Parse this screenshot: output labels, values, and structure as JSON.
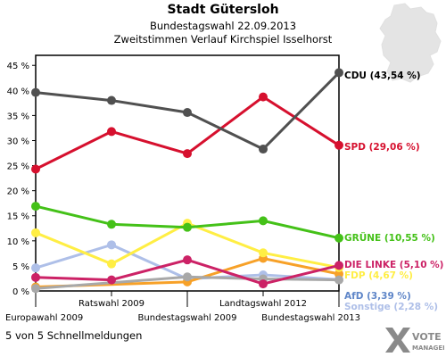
{
  "header": {
    "title": "Stadt Gütersloh",
    "subtitle": "Bundestagswahl 22.09.2013",
    "subtitle2": "Zweitstimmen Verlauf Kirchspiel Isselhorst"
  },
  "footer": {
    "text": "5 von 5 Schnellmeldungen"
  },
  "logo": {
    "line1": "VOTE",
    "line2": "MANAGER"
  },
  "chart_data": {
    "type": "line",
    "title": "Stadt Gütersloh",
    "subtitle": "Bundestagswahl 22.09.2013",
    "x": [
      "Europawahl 2009",
      "Ratswahl 2009",
      "Bundestagswahl 2009",
      "Landtagswahl 2012",
      "Bundestagswahl 2013"
    ],
    "ylim": [
      0,
      47
    ],
    "yticks": [
      "0 %",
      "5 %",
      "10 %",
      "15 %",
      "20 %",
      "25 %",
      "30 %",
      "35 %",
      "40 %",
      "45 %"
    ],
    "ytick_values": [
      0,
      5,
      10,
      15,
      20,
      25,
      30,
      35,
      40,
      45
    ],
    "grid": false,
    "legend": "right end labels",
    "series": [
      {
        "name": "Sonstige",
        "label": "Sonstige (2,28 %)",
        "color": "#aebfe8",
        "values": [
          4.6,
          9.2,
          2.4,
          3.2,
          2.28
        ]
      },
      {
        "name": "AfD",
        "label": "AfD (3,39 %)",
        "color": "#f7a128",
        "values": [
          0.8,
          null,
          1.8,
          6.5,
          3.39
        ]
      },
      {
        "name": "Grau",
        "label": "",
        "color": "#a8a8a8",
        "values": [
          0.5,
          null,
          2.8,
          2.4,
          2.2
        ]
      },
      {
        "name": "FDP",
        "label": "FDP (4,67 %)",
        "color": "#ffee44",
        "values": [
          11.6,
          5.4,
          13.5,
          7.6,
          4.67
        ]
      },
      {
        "name": "DIE LINKE",
        "label": "DIE LINKE (5,10 %)",
        "color": "#cc2266",
        "values": [
          2.7,
          2.2,
          6.2,
          1.4,
          5.1
        ]
      },
      {
        "name": "GRÜNE",
        "label": "GRÜNE (10,55 %)",
        "color": "#44c118",
        "values": [
          16.9,
          13.3,
          12.7,
          14.0,
          10.55
        ]
      },
      {
        "name": "SPD",
        "label": "SPD (29,06 %)",
        "color": "#d6102e",
        "values": [
          24.3,
          31.8,
          27.4,
          38.7,
          29.06
        ]
      },
      {
        "name": "CDU",
        "label": "CDU (43,54 %)",
        "color": "#505050",
        "values": [
          39.6,
          38.0,
          35.6,
          28.3,
          43.54
        ]
      }
    ]
  }
}
